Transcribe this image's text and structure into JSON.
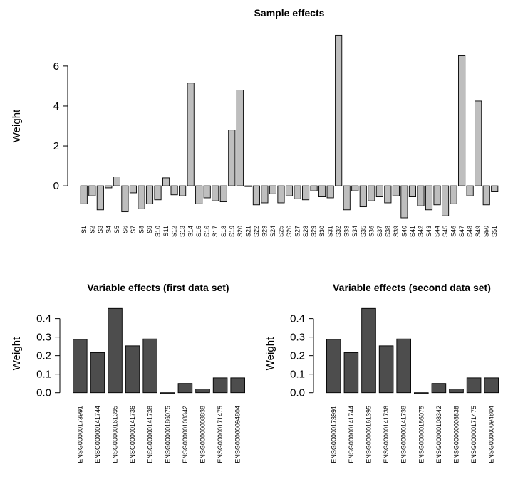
{
  "chart_data": [
    {
      "type": "bar",
      "title": "Sample effects",
      "xlabel": "",
      "ylabel": "Weight",
      "ylim": [
        -1.6,
        7.6
      ],
      "yticks": [
        0,
        2,
        4,
        6
      ],
      "bar_color": "#bebebe",
      "categories": [
        "S1",
        "S2",
        "S3",
        "S4",
        "S5",
        "S6",
        "S7",
        "S8",
        "S9",
        "S10",
        "S11",
        "S12",
        "S13",
        "S14",
        "S15",
        "S16",
        "S17",
        "S18",
        "S19",
        "S20",
        "S21",
        "S22",
        "S23",
        "S24",
        "S25",
        "S26",
        "S27",
        "S28",
        "S29",
        "S30",
        "S31",
        "S32",
        "S33",
        "S34",
        "S35",
        "S36",
        "S37",
        "S38",
        "S39",
        "S40",
        "S41",
        "S42",
        "S43",
        "S44",
        "S45",
        "S46",
        "S47",
        "S48",
        "S49",
        "S50",
        "S51"
      ],
      "values": [
        -0.9,
        -0.5,
        -1.2,
        -0.1,
        0.45,
        -1.3,
        -0.35,
        -1.15,
        -0.9,
        -0.7,
        0.4,
        -0.45,
        -0.5,
        5.15,
        -0.9,
        -0.6,
        -0.75,
        -0.8,
        2.8,
        4.8,
        0.0,
        -0.95,
        -0.85,
        -0.4,
        -0.85,
        -0.5,
        -0.65,
        -0.7,
        -0.25,
        -0.55,
        -0.6,
        7.55,
        -1.2,
        -0.25,
        -1.05,
        -0.75,
        -0.55,
        -0.85,
        -0.5,
        -1.6,
        -0.55,
        -1.0,
        -1.2,
        -0.95,
        -1.5,
        -0.9,
        6.55,
        -0.5,
        4.25,
        -0.95,
        -0.3
      ]
    },
    {
      "type": "bar",
      "title": "Variable effects (first data set)",
      "xlabel": "",
      "ylabel": "Weight",
      "ylim": [
        -0.005,
        0.46
      ],
      "yticks": [
        "0.0",
        "0.1",
        "0.2",
        "0.3",
        "0.4"
      ],
      "bar_color": "#4d4d4d",
      "categories": [
        "ENSG00000173991",
        "ENSG00000141744",
        "ENSG00000161395",
        "ENSG00000141736",
        "ENSG00000141738",
        "ENSG00000186075",
        "ENSG00000108342",
        "ENSG00000008838",
        "ENSG00000171475",
        "ENSG00000094804"
      ],
      "values": [
        0.288,
        0.216,
        0.455,
        0.253,
        0.29,
        -0.005,
        0.05,
        0.02,
        0.08,
        0.08
      ]
    },
    {
      "type": "bar",
      "title": "Variable effects (second data set)",
      "xlabel": "",
      "ylabel": "Weight",
      "ylim": [
        -0.005,
        0.46
      ],
      "yticks": [
        "0.0",
        "0.1",
        "0.2",
        "0.3",
        "0.4"
      ],
      "bar_color": "#4d4d4d",
      "categories": [
        "ENSG00000173991",
        "ENSG00000141744",
        "ENSG00000161395",
        "ENSG00000141736",
        "ENSG00000141738",
        "ENSG00000186075",
        "ENSG00000108342",
        "ENSG00000008838",
        "ENSG00000171475",
        "ENSG00000094804"
      ],
      "values": [
        0.288,
        0.216,
        0.455,
        0.253,
        0.29,
        -0.005,
        0.05,
        0.02,
        0.08,
        0.08
      ]
    }
  ]
}
